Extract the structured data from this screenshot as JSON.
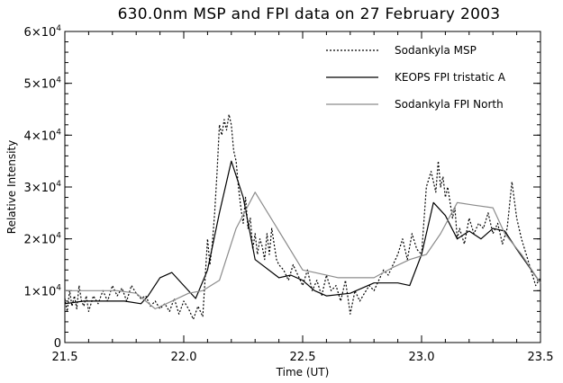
{
  "chart_data": {
    "type": "line",
    "title": "630.0nm MSP and FPI data on 27 February 2003",
    "xlabel": "Time (UT)",
    "ylabel": "Relative Intensity",
    "xlim": [
      21.5,
      23.5
    ],
    "ylim": [
      0,
      60000
    ],
    "xticks": [
      21.5,
      22.0,
      22.5,
      23.0,
      23.5
    ],
    "xtick_labels": [
      "21.5",
      "22.0",
      "22.5",
      "23.0",
      "23.5"
    ],
    "yticks": [
      0,
      10000,
      20000,
      30000,
      40000,
      50000,
      60000
    ],
    "ytick_labels": [
      {
        "mantissa": "0",
        "exp": ""
      },
      {
        "mantissa": "1×10",
        "exp": "4"
      },
      {
        "mantissa": "2×10",
        "exp": "4"
      },
      {
        "mantissa": "3×10",
        "exp": "4"
      },
      {
        "mantissa": "4×10",
        "exp": "4"
      },
      {
        "mantissa": "5×10",
        "exp": "4"
      },
      {
        "mantissa": "6×10",
        "exp": "4"
      }
    ],
    "legend_position": "top-right",
    "grid": false,
    "series": [
      {
        "name": "Sodankyla MSP",
        "style": "dotted",
        "color": "#000000",
        "x": [
          21.5,
          21.51,
          21.52,
          21.53,
          21.54,
          21.55,
          21.56,
          21.57,
          21.58,
          21.59,
          21.6,
          21.62,
          21.64,
          21.66,
          21.68,
          21.7,
          21.72,
          21.74,
          21.76,
          21.78,
          21.8,
          21.82,
          21.84,
          21.86,
          21.88,
          21.9,
          21.92,
          21.94,
          21.96,
          21.98,
          22.0,
          22.02,
          22.04,
          22.06,
          22.08,
          22.1,
          22.11,
          22.12,
          22.13,
          22.14,
          22.15,
          22.16,
          22.17,
          22.18,
          22.19,
          22.2,
          22.21,
          22.22,
          22.23,
          22.24,
          22.25,
          22.26,
          22.27,
          22.28,
          22.29,
          22.3,
          22.31,
          22.32,
          22.33,
          22.34,
          22.35,
          22.36,
          22.37,
          22.38,
          22.39,
          22.4,
          22.42,
          22.44,
          22.46,
          22.48,
          22.5,
          22.52,
          22.54,
          22.56,
          22.58,
          22.6,
          22.62,
          22.64,
          22.66,
          22.68,
          22.7,
          22.72,
          22.74,
          22.76,
          22.78,
          22.8,
          22.82,
          22.84,
          22.86,
          22.88,
          22.9,
          22.92,
          22.94,
          22.96,
          22.98,
          23.0,
          23.02,
          23.04,
          23.06,
          23.07,
          23.08,
          23.09,
          23.1,
          23.11,
          23.12,
          23.13,
          23.14,
          23.15,
          23.16,
          23.18,
          23.2,
          23.22,
          23.24,
          23.26,
          23.28,
          23.3,
          23.32,
          23.34,
          23.36,
          23.38,
          23.4,
          23.42,
          23.44,
          23.46,
          23.48,
          23.5
        ],
        "values": [
          8500,
          6000,
          10000,
          7000,
          9000,
          6500,
          11000,
          8000,
          7000,
          9000,
          6000,
          9000,
          7500,
          10000,
          8000,
          11000,
          9000,
          10500,
          8000,
          11000,
          9500,
          8500,
          9000,
          7000,
          8000,
          6500,
          7500,
          6000,
          8500,
          5500,
          8000,
          6500,
          4500,
          7000,
          5000,
          20000,
          15000,
          19000,
          25000,
          33000,
          42000,
          40000,
          43000,
          41000,
          44000,
          42000,
          37000,
          35000,
          30000,
          26000,
          23000,
          28000,
          22000,
          24000,
          18000,
          21000,
          17000,
          20000,
          18500,
          16000,
          21000,
          17000,
          22000,
          19000,
          16000,
          15000,
          14000,
          12000,
          15000,
          13000,
          11000,
          14000,
          10000,
          12000,
          9000,
          13000,
          10000,
          11000,
          8000,
          12000,
          5500,
          10000,
          8000,
          9500,
          11000,
          10000,
          12000,
          14000,
          13000,
          15000,
          17000,
          20000,
          16000,
          21000,
          18000,
          17000,
          30000,
          33000,
          29000,
          35000,
          30000,
          32000,
          28000,
          30000,
          27000,
          24000,
          26000,
          20000,
          22000,
          19000,
          24000,
          21000,
          23000,
          22000,
          25000,
          21000,
          23000,
          19000,
          22000,
          31000,
          24000,
          20000,
          17000,
          14000,
          11000,
          12500
        ]
      },
      {
        "name": "KEOPS FPI tristatic A",
        "style": "solid",
        "color": "#000000",
        "x": [
          21.5,
          21.58,
          21.65,
          21.75,
          21.82,
          21.85,
          21.9,
          21.95,
          22.0,
          22.05,
          22.1,
          22.15,
          22.2,
          22.25,
          22.3,
          22.4,
          22.45,
          22.5,
          22.55,
          22.6,
          22.7,
          22.8,
          22.9,
          22.95,
          23.0,
          23.05,
          23.1,
          23.15,
          23.2,
          23.25,
          23.3,
          23.35,
          23.4,
          23.5
        ],
        "values": [
          7500,
          8000,
          8000,
          8000,
          7500,
          9000,
          12500,
          13500,
          11000,
          8500,
          14000,
          25000,
          35000,
          28000,
          16000,
          12500,
          13000,
          12000,
          10000,
          9000,
          9500,
          11500,
          11500,
          11000,
          17000,
          27000,
          24500,
          20000,
          21500,
          20000,
          22000,
          21500,
          18000,
          11500
        ]
      },
      {
        "name": "Sodankyla FPI North",
        "style": "solid",
        "color": "#8c8c8c",
        "x": [
          21.5,
          21.58,
          21.65,
          21.72,
          21.8,
          21.88,
          21.95,
          22.02,
          22.08,
          22.15,
          22.22,
          22.3,
          22.4,
          22.5,
          22.55,
          22.65,
          22.72,
          22.8,
          22.88,
          22.95,
          23.02,
          23.08,
          23.15,
          23.22,
          23.3,
          23.35,
          23.42,
          23.5
        ],
        "values": [
          10000,
          10000,
          10000,
          10000,
          9500,
          6500,
          8000,
          9500,
          10000,
          12000,
          22000,
          29000,
          21500,
          14000,
          13500,
          12500,
          12500,
          12500,
          14500,
          16000,
          17000,
          21000,
          27000,
          26500,
          26000,
          21000,
          17000,
          11500
        ]
      }
    ]
  }
}
